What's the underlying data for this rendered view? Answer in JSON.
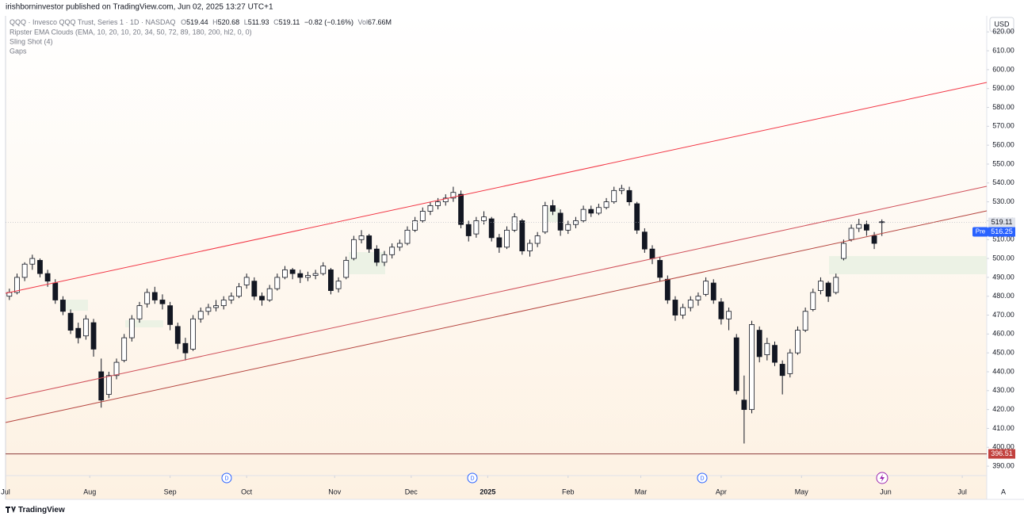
{
  "header": {
    "publisher": "irishborninvestor published on TradingView.com, Jun 02, 2025 13:27 UTC+1"
  },
  "legend": {
    "symbol": "QQQ · Invesco QQQ Trust, Series 1 · 1D · NASDAQ",
    "o_label": "O",
    "o": 519.44,
    "h_label": "H",
    "h": 520.68,
    "l_label": "L",
    "l": 511.93,
    "c_label": "C",
    "c": 519.11,
    "change": "−0.82 (−0.16%)",
    "vol_label": "Vol",
    "vol": "67.66M",
    "indicators": [
      "Ripster EMA Clouds (EMA, 10, 20, 10, 20, 34, 50, 72, 89, 180, 200, hl2, 0, 0)",
      "Sling Shot (4)",
      "Gaps"
    ]
  },
  "chart_data": {
    "type": "candlestick",
    "currency": "USD",
    "up_color": "#ffffff",
    "down_color": "#131722",
    "edge_color": "#131722",
    "candles": [
      [
        480,
        484,
        478,
        482
      ],
      [
        482,
        492,
        481,
        490
      ],
      [
        490,
        498,
        488,
        497
      ],
      [
        497,
        502,
        494,
        500
      ],
      [
        499,
        500,
        490,
        492
      ],
      [
        492,
        494,
        485,
        488
      ],
      [
        487,
        489,
        476,
        478
      ],
      [
        478,
        480,
        470,
        472
      ],
      [
        471,
        473,
        460,
        462
      ],
      [
        463,
        466,
        455,
        458
      ],
      [
        459,
        470,
        457,
        468
      ],
      [
        466,
        468,
        448,
        452
      ],
      [
        440,
        447,
        421,
        425
      ],
      [
        428,
        440,
        426,
        438
      ],
      [
        438,
        447,
        436,
        445
      ],
      [
        446,
        460,
        445,
        458
      ],
      [
        458,
        470,
        456,
        468
      ],
      [
        468,
        477,
        466,
        475
      ],
      [
        476,
        484,
        474,
        482
      ],
      [
        482,
        485,
        476,
        478
      ],
      [
        478,
        481,
        473,
        476
      ],
      [
        475,
        477,
        462,
        465
      ],
      [
        464,
        466,
        452,
        455
      ],
      [
        455,
        458,
        446,
        450
      ],
      [
        452,
        470,
        451,
        468
      ],
      [
        468,
        474,
        466,
        472
      ],
      [
        472,
        476,
        470,
        474
      ],
      [
        474,
        478,
        472,
        475
      ],
      [
        475,
        480,
        473,
        478
      ],
      [
        478,
        482,
        476,
        480
      ],
      [
        480,
        487,
        479,
        485
      ],
      [
        486,
        492,
        484,
        490
      ],
      [
        488,
        490,
        478,
        480
      ],
      [
        480,
        482,
        475,
        478
      ],
      [
        478,
        486,
        477,
        484
      ],
      [
        484,
        492,
        483,
        490
      ],
      [
        490,
        496,
        489,
        494
      ],
      [
        494,
        495,
        489,
        492
      ],
      [
        492,
        494,
        487,
        490
      ],
      [
        490,
        493,
        488,
        491
      ],
      [
        491,
        494,
        489,
        492
      ],
      [
        492,
        498,
        491,
        496
      ],
      [
        494,
        495,
        481,
        483
      ],
      [
        484,
        490,
        482,
        488
      ],
      [
        490,
        501,
        489,
        499
      ],
      [
        500,
        512,
        499,
        510
      ],
      [
        510,
        515,
        508,
        512
      ],
      [
        512,
        513,
        503,
        505
      ],
      [
        505,
        507,
        496,
        498
      ],
      [
        498,
        504,
        496,
        502
      ],
      [
        502,
        508,
        500,
        506
      ],
      [
        506,
        510,
        504,
        508
      ],
      [
        508,
        517,
        507,
        515
      ],
      [
        515,
        522,
        514,
        520
      ],
      [
        520,
        527,
        519,
        525
      ],
      [
        525,
        530,
        523,
        528
      ],
      [
        528,
        532,
        526,
        530
      ],
      [
        530,
        534,
        528,
        532
      ],
      [
        532,
        538,
        530,
        535
      ],
      [
        534,
        536,
        516,
        518
      ],
      [
        518,
        520,
        509,
        512
      ],
      [
        513,
        522,
        511,
        520
      ],
      [
        520,
        525,
        518,
        522
      ],
      [
        521,
        522,
        509,
        511
      ],
      [
        511,
        513,
        503,
        506
      ],
      [
        506,
        517,
        505,
        515
      ],
      [
        515,
        524,
        514,
        522
      ],
      [
        520,
        521,
        502,
        504
      ],
      [
        504,
        510,
        501,
        508
      ],
      [
        508,
        514,
        506,
        512
      ],
      [
        514,
        530,
        513,
        528
      ],
      [
        528,
        531,
        523,
        525
      ],
      [
        524,
        526,
        512,
        515
      ],
      [
        515,
        520,
        513,
        518
      ],
      [
        518,
        522,
        516,
        520
      ],
      [
        520,
        528,
        519,
        526
      ],
      [
        526,
        528,
        522,
        524
      ],
      [
        524,
        529,
        523,
        527
      ],
      [
        527,
        532,
        526,
        530
      ],
      [
        530,
        538,
        529,
        536
      ],
      [
        536,
        539,
        534,
        537
      ],
      [
        536,
        538,
        528,
        530
      ],
      [
        529,
        530,
        513,
        515
      ],
      [
        514,
        516,
        503,
        505
      ],
      [
        505,
        507,
        497,
        500
      ],
      [
        499,
        501,
        488,
        490
      ],
      [
        489,
        491,
        476,
        478
      ],
      [
        478,
        480,
        467,
        470
      ],
      [
        470,
        476,
        468,
        474
      ],
      [
        474,
        480,
        472,
        478
      ],
      [
        478,
        482,
        475,
        480
      ],
      [
        481,
        490,
        480,
        488
      ],
      [
        487,
        489,
        476,
        478
      ],
      [
        477,
        479,
        465,
        468
      ],
      [
        468,
        474,
        462,
        472
      ],
      [
        458,
        460,
        428,
        430
      ],
      [
        425,
        438,
        402,
        420
      ],
      [
        420,
        467,
        418,
        465
      ],
      [
        462,
        464,
        445,
        448
      ],
      [
        449,
        458,
        446,
        455
      ],
      [
        454,
        456,
        443,
        445
      ],
      [
        444,
        446,
        428,
        438
      ],
      [
        439,
        452,
        437,
        450
      ],
      [
        450,
        464,
        449,
        462
      ],
      [
        462,
        474,
        461,
        472
      ],
      [
        473,
        484,
        472,
        482
      ],
      [
        483,
        490,
        481,
        488
      ],
      [
        487,
        488,
        477,
        480
      ],
      [
        482,
        492,
        481,
        490
      ],
      [
        500,
        510,
        499,
        508
      ],
      [
        510,
        518,
        509,
        516
      ],
      [
        516,
        521,
        514,
        518
      ],
      [
        518,
        520,
        512,
        515
      ],
      [
        512,
        514,
        505,
        508
      ],
      [
        519.44,
        520.68,
        511.93,
        519.11
      ]
    ],
    "xlim": [
      0,
      128.2
    ],
    "ylim": [
      385,
      628.5
    ],
    "xticks": [
      {
        "value": 0,
        "label": "Jul"
      },
      {
        "value": 11,
        "label": "Aug"
      },
      {
        "value": 21.5,
        "label": "Sep"
      },
      {
        "value": 31.5,
        "label": "Oct"
      },
      {
        "value": 43,
        "label": "Nov"
      },
      {
        "value": 53,
        "label": "Dec"
      },
      {
        "value": 63,
        "label": "2025"
      },
      {
        "value": 73.5,
        "label": "Feb"
      },
      {
        "value": 83,
        "label": "Mar"
      },
      {
        "value": 93.5,
        "label": "Apr"
      },
      {
        "value": 104,
        "label": "May"
      },
      {
        "value": 115,
        "label": "Jun"
      },
      {
        "value": 125,
        "label": "Jul"
      }
    ],
    "yticks": [
      {
        "value": 390,
        "label": "390.00"
      },
      {
        "value": 400,
        "label": "400.00"
      },
      {
        "value": 410,
        "label": "410.00"
      },
      {
        "value": 420,
        "label": "420.00"
      },
      {
        "value": 430,
        "label": "430.00"
      },
      {
        "value": 440,
        "label": "440.00"
      },
      {
        "value": 450,
        "label": "450.00"
      },
      {
        "value": 460,
        "label": "460.00"
      },
      {
        "value": 470,
        "label": "470.00"
      },
      {
        "value": 480,
        "label": "480.00"
      },
      {
        "value": 490,
        "label": "490.00"
      },
      {
        "value": 500,
        "label": "500.00"
      },
      {
        "value": 510,
        "label": "510.00"
      },
      {
        "value": 520,
        "label": "520.00"
      },
      {
        "value": 530,
        "label": "530.00"
      },
      {
        "value": 540,
        "label": "540.00"
      },
      {
        "value": 550,
        "label": "550.00"
      },
      {
        "value": 560,
        "label": "560.00"
      },
      {
        "value": 570,
        "label": "570.00"
      },
      {
        "value": 580,
        "label": "580.00"
      },
      {
        "value": 590,
        "label": "590.00"
      },
      {
        "value": 600,
        "label": "600.00"
      },
      {
        "value": 610,
        "label": "610.00"
      },
      {
        "value": 620,
        "label": "620.00"
      }
    ],
    "last_price": 519.11,
    "premarket_label": "Pre",
    "premarket": 516.25,
    "level": 396.51,
    "time_axis_corner": "A"
  },
  "footer": {
    "brand": "TradingView"
  }
}
